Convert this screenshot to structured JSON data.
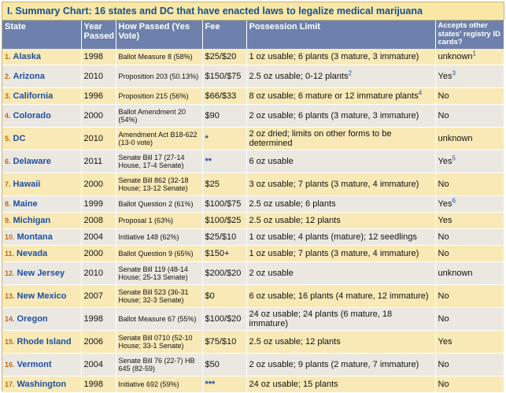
{
  "title": "I. Summary Chart: 16 states and DC that have enacted laws to legalize medical marijuana",
  "headers": {
    "state": "State",
    "year": "Year Passed",
    "how": "How Passed (Yes Vote)",
    "fee": "Fee",
    "possession": "Possession Limit",
    "accepts": "Accepts other states' registry ID cards?"
  },
  "rows": [
    {
      "num": "1.",
      "state": "Alaska",
      "year": "1998",
      "how": "Ballot Measure 8 (58%)",
      "fee": "$25/$20",
      "possession": "1 oz usable; 6 plants (3 mature, 3 immature)",
      "possession_note": "",
      "accepts": "unknown",
      "accepts_note": "1"
    },
    {
      "num": "2.",
      "state": "Arizona",
      "year": "2010",
      "how": "Proposition 203 (50.13%)",
      "fee": "$150/$75",
      "possession": "2.5 oz usable; 0-12 plants",
      "possession_note": "2",
      "accepts": "Yes",
      "accepts_note": "3"
    },
    {
      "num": "3.",
      "state": "California",
      "year": "1996",
      "how": "Proposition 215 (56%)",
      "fee": "$66/$33",
      "possession": "8 oz usable; 6 mature or 12 immature plants",
      "possession_note": "4",
      "accepts": "No",
      "accepts_note": ""
    },
    {
      "num": "4.",
      "state": "Colorado",
      "year": "2000",
      "how": "Ballot Amendment 20 (54%)",
      "fee": "$90",
      "possession": "2 oz usable; 6 plants (3 mature, 3 immature)",
      "possession_note": "",
      "accepts": "No",
      "accepts_note": ""
    },
    {
      "num": "5.",
      "state": "DC",
      "year": "2010",
      "how": "Amendment Act B18-622 (13-0 vote)",
      "fee": "*",
      "possession": "2 oz dried; limits on other forms to be determined",
      "possession_note": "",
      "accepts": "unknown",
      "accepts_note": ""
    },
    {
      "num": "6.",
      "state": "Delaware",
      "year": "2011",
      "how": "Senate Bill 17 (27-14 House, 17-4 Senate)",
      "fee": "**",
      "possession": "6 oz usable",
      "possession_note": "",
      "accepts": "Yes",
      "accepts_note": "5"
    },
    {
      "num": "7.",
      "state": "Hawaii",
      "year": "2000",
      "how": "Senate Bill 862 (32-18 House; 13-12 Senate)",
      "fee": "$25",
      "possession": "3 oz usable; 7 plants (3 mature, 4 immature)",
      "possession_note": "",
      "accepts": "No",
      "accepts_note": ""
    },
    {
      "num": "8.",
      "state": "Maine",
      "year": "1999",
      "how": "Ballot Question 2 (61%)",
      "fee": "$100/$75",
      "possession": "2.5 oz usable; 6 plants",
      "possession_note": "",
      "accepts": "Yes",
      "accepts_note": "6"
    },
    {
      "num": "9.",
      "state": "Michigan",
      "year": "2008",
      "how": "Proposal 1 (63%)",
      "fee": "$100/$25",
      "possession": "2.5 oz usable; 12 plants",
      "possession_note": "",
      "accepts": "Yes",
      "accepts_note": ""
    },
    {
      "num": "10.",
      "state": "Montana",
      "year": "2004",
      "how": "Initiative 148 (62%)",
      "fee": "$25/$10",
      "possession": "1 oz usable; 4 plants (mature); 12 seedlings",
      "possession_note": "",
      "accepts": "No",
      "accepts_note": ""
    },
    {
      "num": "11.",
      "state": "Nevada",
      "year": "2000",
      "how": "Ballot Question 9 (65%)",
      "fee": "$150+",
      "possession": "1 oz usable; 7 plants (3 mature, 4 immature)",
      "possession_note": "",
      "accepts": "No",
      "accepts_note": ""
    },
    {
      "num": "12.",
      "state": "New Jersey",
      "year": "2010",
      "how": "Senate Bill 119 (48-14 House; 25-13 Senate)",
      "fee": "$200/$20",
      "possession": "2 oz usable",
      "possession_note": "",
      "accepts": "unknown",
      "accepts_note": ""
    },
    {
      "num": "13.",
      "state": "New Mexico",
      "year": "2007",
      "how": "Senate Bill 523 (36-31 House; 32-3 Senate)",
      "fee": "$0",
      "possession": "6 oz usable; 16 plants (4 mature, 12 immature)",
      "possession_note": "",
      "accepts": "No",
      "accepts_note": ""
    },
    {
      "num": "14.",
      "state": "Oregon",
      "year": "1998",
      "how": "Ballot Measure 67 (55%)",
      "fee": "$100/$20",
      "possession": "24 oz usable; 24 plants (6 mature, 18 immature)",
      "possession_note": "",
      "accepts": "No",
      "accepts_note": ""
    },
    {
      "num": "15.",
      "state": "Rhode Island",
      "year": "2006",
      "how": "Senate Bill 0710 (52-10 House; 33-1 Senate)",
      "fee": "$75/$10",
      "possession": "2.5 oz usable; 12 plants",
      "possession_note": "",
      "accepts": "Yes",
      "accepts_note": ""
    },
    {
      "num": "16.",
      "state": "Vermont",
      "year": "2004",
      "how": "Senate Bill 76 (22-7) HB 645 (82-59)",
      "fee": "$50",
      "possession": "2 oz usable; 9 plants (2 mature, 7 immature)",
      "possession_note": "",
      "accepts": "No",
      "accepts_note": ""
    },
    {
      "num": "17.",
      "state": "Washington",
      "year": "1998",
      "how": "Initiative 692 (59%)",
      "fee": "***",
      "possession": "24 oz usable; 15 plants",
      "possession_note": "",
      "accepts": "No",
      "accepts_note": ""
    }
  ]
}
